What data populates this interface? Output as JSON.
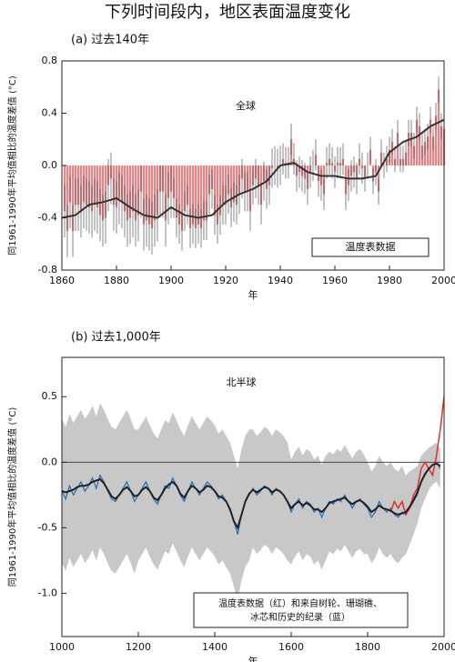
{
  "title": "下列时间段内，地区表面温度变化",
  "chart_data": [
    {
      "type": "bar",
      "panel_label": "(a) 过去140年",
      "region_label": "全球",
      "legend_text": "温度表数据",
      "ylabel": "同1961-1990年平均值相比的温度差值 (°C)",
      "xlabel": "年",
      "color": "#e05a5e",
      "error_color": "#555555",
      "smooth_color": "#333333",
      "xlim": [
        1860,
        2000
      ],
      "xticks": [
        1860,
        1880,
        1900,
        1920,
        1940,
        1960,
        1980,
        2000
      ],
      "ylim": [
        -0.8,
        0.8
      ],
      "yticks": [
        -0.8,
        -0.4,
        {
          "value": 0,
          "label": "0.0"
        },
        0.4,
        0.8
      ],
      "x": [
        1861,
        1862,
        1863,
        1864,
        1865,
        1866,
        1867,
        1868,
        1869,
        1870,
        1871,
        1872,
        1873,
        1874,
        1875,
        1876,
        1877,
        1878,
        1879,
        1880,
        1881,
        1882,
        1883,
        1884,
        1885,
        1886,
        1887,
        1888,
        1889,
        1890,
        1891,
        1892,
        1893,
        1894,
        1895,
        1896,
        1897,
        1898,
        1899,
        1900,
        1901,
        1902,
        1903,
        1904,
        1905,
        1906,
        1907,
        1908,
        1909,
        1910,
        1911,
        1912,
        1913,
        1914,
        1915,
        1916,
        1917,
        1918,
        1919,
        1920,
        1921,
        1922,
        1923,
        1924,
        1925,
        1926,
        1927,
        1928,
        1929,
        1930,
        1931,
        1932,
        1933,
        1934,
        1935,
        1936,
        1937,
        1938,
        1939,
        1940,
        1941,
        1942,
        1943,
        1944,
        1945,
        1946,
        1947,
        1948,
        1949,
        1950,
        1951,
        1952,
        1953,
        1954,
        1955,
        1956,
        1957,
        1958,
        1959,
        1960,
        1961,
        1962,
        1963,
        1964,
        1965,
        1966,
        1967,
        1968,
        1969,
        1970,
        1971,
        1972,
        1973,
        1974,
        1975,
        1976,
        1977,
        1978,
        1979,
        1980,
        1981,
        1982,
        1983,
        1984,
        1985,
        1986,
        1987,
        1988,
        1989,
        1990,
        1991,
        1992,
        1993,
        1994,
        1995,
        1996,
        1997,
        1998,
        1999,
        2000
      ],
      "values": [
        -0.35,
        -0.5,
        -0.28,
        -0.5,
        -0.3,
        -0.3,
        -0.35,
        -0.28,
        -0.3,
        -0.32,
        -0.35,
        -0.3,
        -0.32,
        -0.38,
        -0.42,
        -0.4,
        -0.15,
        -0.1,
        -0.3,
        -0.32,
        -0.25,
        -0.28,
        -0.35,
        -0.42,
        -0.4,
        -0.35,
        -0.42,
        -0.38,
        -0.2,
        -0.45,
        -0.42,
        -0.45,
        -0.48,
        -0.42,
        -0.38,
        -0.2,
        -0.2,
        -0.42,
        -0.25,
        -0.2,
        -0.25,
        -0.4,
        -0.45,
        -0.5,
        -0.35,
        -0.3,
        -0.48,
        -0.45,
        -0.48,
        -0.45,
        -0.48,
        -0.42,
        -0.42,
        -0.22,
        -0.18,
        -0.38,
        -0.45,
        -0.38,
        -0.3,
        -0.3,
        -0.22,
        -0.32,
        -0.28,
        -0.3,
        -0.22,
        -0.1,
        -0.2,
        -0.2,
        -0.35,
        -0.15,
        -0.1,
        -0.15,
        -0.3,
        -0.12,
        -0.18,
        -0.15,
        -0.02,
        0.0,
        -0.02,
        0.0,
        0.05,
        0.02,
        0.02,
        0.2,
        0.05,
        -0.08,
        -0.05,
        -0.08,
        -0.1,
        -0.18,
        -0.05,
        0.0,
        0.08,
        -0.12,
        -0.15,
        -0.22,
        0.02,
        0.05,
        0.02,
        -0.05,
        0.02,
        0.02,
        0.05,
        -0.22,
        -0.15,
        -0.08,
        -0.05,
        -0.1,
        0.05,
        -0.02,
        -0.1,
        0.0,
        0.12,
        -0.12,
        -0.05,
        -0.2,
        0.1,
        0.0,
        0.05,
        0.12,
        0.18,
        0.05,
        0.25,
        0.05,
        0.05,
        0.1,
        0.25,
        0.25,
        0.15,
        0.35,
        0.3,
        0.15,
        0.18,
        0.22,
        0.35,
        0.22,
        0.38,
        0.58,
        0.3,
        0.28
      ],
      "errors": [
        0.2,
        0.2,
        0.2,
        0.2,
        0.2,
        0.2,
        0.2,
        0.2,
        0.2,
        0.2,
        0.2,
        0.2,
        0.2,
        0.2,
        0.2,
        0.2,
        0.2,
        0.2,
        0.2,
        0.2,
        0.2,
        0.2,
        0.2,
        0.2,
        0.2,
        0.2,
        0.2,
        0.2,
        0.2,
        0.2,
        0.2,
        0.2,
        0.2,
        0.2,
        0.2,
        0.2,
        0.2,
        0.2,
        0.2,
        0.2,
        0.15,
        0.15,
        0.15,
        0.15,
        0.15,
        0.15,
        0.15,
        0.15,
        0.15,
        0.15,
        0.15,
        0.15,
        0.15,
        0.15,
        0.15,
        0.15,
        0.15,
        0.15,
        0.15,
        0.15,
        0.15,
        0.15,
        0.15,
        0.15,
        0.15,
        0.15,
        0.15,
        0.15,
        0.15,
        0.15,
        0.15,
        0.15,
        0.15,
        0.15,
        0.15,
        0.15,
        0.15,
        0.15,
        0.15,
        0.15,
        0.12,
        0.12,
        0.12,
        0.12,
        0.12,
        0.12,
        0.12,
        0.12,
        0.12,
        0.12,
        0.12,
        0.12,
        0.12,
        0.12,
        0.12,
        0.12,
        0.12,
        0.12,
        0.12,
        0.12,
        0.12,
        0.12,
        0.12,
        0.12,
        0.12,
        0.12,
        0.12,
        0.12,
        0.12,
        0.12,
        0.1,
        0.1,
        0.1,
        0.1,
        0.1,
        0.1,
        0.1,
        0.1,
        0.1,
        0.1,
        0.1,
        0.1,
        0.1,
        0.1,
        0.1,
        0.1,
        0.1,
        0.1,
        0.1,
        0.1,
        0.1,
        0.1,
        0.1,
        0.1,
        0.1,
        0.1,
        0.1,
        0.1,
        0.1,
        0.1
      ],
      "smooth": {
        "x": [
          1860,
          1865,
          1870,
          1875,
          1880,
          1885,
          1890,
          1895,
          1900,
          1905,
          1910,
          1915,
          1920,
          1925,
          1930,
          1935,
          1940,
          1945,
          1950,
          1955,
          1960,
          1965,
          1970,
          1975,
          1980,
          1985,
          1990,
          1995,
          2000
        ],
        "values": [
          -0.4,
          -0.38,
          -0.3,
          -0.28,
          -0.25,
          -0.32,
          -0.38,
          -0.4,
          -0.32,
          -0.38,
          -0.4,
          -0.38,
          -0.28,
          -0.22,
          -0.18,
          -0.12,
          0.0,
          0.02,
          -0.05,
          -0.08,
          -0.08,
          -0.1,
          -0.1,
          -0.08,
          0.1,
          0.18,
          0.22,
          0.3,
          0.35
        ]
      }
    },
    {
      "type": "line",
      "panel_label": "(b) 过去1,000年",
      "region_label": "北半球",
      "legend_text": [
        "温度表数据（红）和来自树轮、珊瑚礁、",
        "冰芯和历史的纪录（蓝）"
      ],
      "ylabel": "同1961-1990年平均值相比的温度差值 (°C)",
      "xlabel": "年",
      "xlim": [
        1000,
        2000
      ],
      "xticks": [
        1000,
        1200,
        1400,
        1600,
        1800,
        2000
      ],
      "ylim": [
        -1.33,
        0.8
      ],
      "yticks": [
        {
          "value": -1,
          "label": "-1.0"
        },
        -0.5,
        {
          "value": 0,
          "label": "0.0"
        },
        0.5
      ],
      "x": [
        1000,
        1010,
        1020,
        1030,
        1040,
        1050,
        1060,
        1070,
        1080,
        1090,
        1100,
        1110,
        1120,
        1130,
        1140,
        1150,
        1160,
        1170,
        1180,
        1190,
        1200,
        1210,
        1220,
        1230,
        1240,
        1250,
        1260,
        1270,
        1280,
        1290,
        1300,
        1310,
        1320,
        1330,
        1340,
        1350,
        1360,
        1370,
        1380,
        1390,
        1400,
        1410,
        1420,
        1430,
        1440,
        1450,
        1460,
        1470,
        1480,
        1490,
        1500,
        1510,
        1520,
        1530,
        1540,
        1550,
        1560,
        1570,
        1580,
        1590,
        1600,
        1610,
        1620,
        1630,
        1640,
        1650,
        1660,
        1670,
        1680,
        1690,
        1700,
        1710,
        1720,
        1730,
        1740,
        1750,
        1760,
        1770,
        1780,
        1790,
        1800,
        1810,
        1820,
        1830,
        1840,
        1850,
        1860,
        1870,
        1880,
        1890,
        1900,
        1910,
        1920,
        1930,
        1940,
        1950,
        1960,
        1970,
        1980,
        1990
      ],
      "band": {
        "color": "#c8c8c8",
        "errors": [
          0.55,
          0.55,
          0.55,
          0.55,
          0.55,
          0.55,
          0.55,
          0.55,
          0.55,
          0.55,
          0.55,
          0.55,
          0.55,
          0.55,
          0.55,
          0.55,
          0.55,
          0.55,
          0.55,
          0.55,
          0.5,
          0.5,
          0.5,
          0.5,
          0.5,
          0.5,
          0.5,
          0.5,
          0.5,
          0.5,
          0.5,
          0.5,
          0.5,
          0.5,
          0.5,
          0.5,
          0.5,
          0.5,
          0.5,
          0.5,
          0.5,
          0.5,
          0.5,
          0.5,
          0.5,
          0.5,
          0.5,
          0.5,
          0.5,
          0.5,
          0.45,
          0.45,
          0.45,
          0.45,
          0.45,
          0.45,
          0.45,
          0.45,
          0.45,
          0.45,
          0.4,
          0.4,
          0.4,
          0.4,
          0.4,
          0.4,
          0.4,
          0.4,
          0.4,
          0.4,
          0.38,
          0.38,
          0.38,
          0.38,
          0.38,
          0.38,
          0.38,
          0.38,
          0.38,
          0.38,
          0.35,
          0.35,
          0.35,
          0.35,
          0.35,
          0.35,
          0.35,
          0.35,
          0.35,
          0.35,
          0.3,
          0.28,
          0.25,
          0.22,
          0.2,
          0.18,
          0.16,
          0.15,
          0.15,
          0.15
        ]
      },
      "series": [
        {
          "color": "#1f6fb8",
          "values": [
            -0.22,
            -0.28,
            -0.18,
            -0.25,
            -0.2,
            -0.15,
            -0.22,
            -0.18,
            -0.12,
            -0.2,
            -0.1,
            -0.15,
            -0.22,
            -0.28,
            -0.3,
            -0.25,
            -0.2,
            -0.15,
            -0.22,
            -0.3,
            -0.25,
            -0.2,
            -0.15,
            -0.22,
            -0.28,
            -0.32,
            -0.25,
            -0.18,
            -0.2,
            -0.12,
            -0.18,
            -0.25,
            -0.3,
            -0.22,
            -0.15,
            -0.2,
            -0.25,
            -0.2,
            -0.15,
            -0.18,
            -0.22,
            -0.28,
            -0.25,
            -0.3,
            -0.35,
            -0.45,
            -0.55,
            -0.4,
            -0.3,
            -0.25,
            -0.2,
            -0.25,
            -0.22,
            -0.18,
            -0.2,
            -0.25,
            -0.2,
            -0.22,
            -0.25,
            -0.3,
            -0.38,
            -0.32,
            -0.28,
            -0.35,
            -0.3,
            -0.32,
            -0.38,
            -0.35,
            -0.42,
            -0.35,
            -0.3,
            -0.32,
            -0.28,
            -0.3,
            -0.25,
            -0.3,
            -0.35,
            -0.3,
            -0.28,
            -0.32,
            -0.35,
            -0.42,
            -0.38,
            -0.3,
            -0.35,
            -0.38,
            -0.35,
            -0.4,
            -0.42,
            -0.38,
            -0.4,
            -0.35,
            -0.3,
            -0.25,
            -0.15,
            -0.1,
            -0.05,
            -0.02,
            0.0,
            -0.05
          ]
        },
        {
          "color": "#222222",
          "values": [
            -0.22,
            -0.23,
            -0.22,
            -0.21,
            -0.19,
            -0.18,
            -0.18,
            -0.17,
            -0.15,
            -0.14,
            -0.13,
            -0.16,
            -0.21,
            -0.26,
            -0.28,
            -0.25,
            -0.21,
            -0.19,
            -0.22,
            -0.26,
            -0.25,
            -0.21,
            -0.19,
            -0.22,
            -0.27,
            -0.29,
            -0.25,
            -0.2,
            -0.17,
            -0.15,
            -0.18,
            -0.24,
            -0.27,
            -0.22,
            -0.18,
            -0.2,
            -0.23,
            -0.21,
            -0.18,
            -0.19,
            -0.22,
            -0.26,
            -0.27,
            -0.3,
            -0.36,
            -0.45,
            -0.5,
            -0.4,
            -0.3,
            -0.24,
            -0.21,
            -0.23,
            -0.21,
            -0.19,
            -0.2,
            -0.23,
            -0.21,
            -0.22,
            -0.25,
            -0.3,
            -0.35,
            -0.32,
            -0.3,
            -0.33,
            -0.31,
            -0.33,
            -0.36,
            -0.36,
            -0.38,
            -0.35,
            -0.31,
            -0.3,
            -0.29,
            -0.28,
            -0.27,
            -0.3,
            -0.32,
            -0.3,
            -0.29,
            -0.31,
            -0.34,
            -0.38,
            -0.36,
            -0.33,
            -0.35,
            -0.36,
            -0.37,
            -0.39,
            -0.4,
            -0.39,
            -0.38,
            -0.34,
            -0.29,
            -0.23,
            -0.15,
            -0.09,
            -0.05,
            -0.02,
            -0.01,
            -0.03
          ]
        }
      ],
      "instrumental": {
        "color": "#e03030",
        "x": [
          1860,
          1870,
          1880,
          1890,
          1900,
          1910,
          1920,
          1930,
          1940,
          1950,
          1960,
          1970,
          1980,
          1990,
          2000
        ],
        "values": [
          -0.38,
          -0.3,
          -0.35,
          -0.3,
          -0.4,
          -0.35,
          -0.25,
          -0.2,
          -0.05,
          0.0,
          -0.05,
          -0.1,
          0.05,
          0.25,
          0.5
        ]
      }
    }
  ]
}
